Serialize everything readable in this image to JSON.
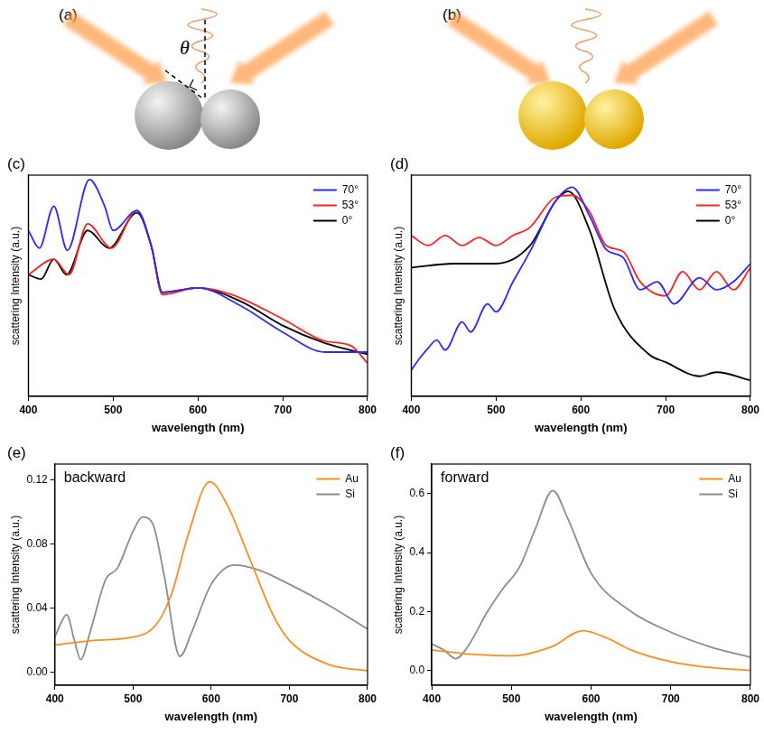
{
  "schematics": [
    {
      "panel": "(a)",
      "angle_label": "θ"
    },
    {
      "panel": "(b)"
    }
  ],
  "chart_data": [
    {
      "type": "line",
      "panel": "(c)",
      "x_label": "wavelength (nm)",
      "y_label": "scattering Intensity (a.u.)",
      "xlim": [
        400,
        800
      ],
      "xticks": [
        400,
        500,
        600,
        700,
        800
      ],
      "ylim": [
        0,
        1
      ],
      "tick_labels": "x",
      "grid": false,
      "legend": "upper right",
      "series": [
        {
          "name": "70°",
          "color": "#2a2aff",
          "x": [
            400,
            413,
            430,
            446,
            472,
            490,
            500,
            528,
            545,
            558,
            600,
            650,
            700,
            750,
            800
          ],
          "values": [
            0.75,
            0.67,
            0.86,
            0.66,
            0.98,
            0.86,
            0.75,
            0.84,
            0.68,
            0.47,
            0.49,
            0.41,
            0.29,
            0.2,
            0.2
          ]
        },
        {
          "name": "53°",
          "color": "#ff2020",
          "x": [
            400,
            430,
            448,
            470,
            498,
            528,
            545,
            558,
            600,
            640,
            700,
            750,
            780,
            800
          ],
          "values": [
            0.55,
            0.62,
            0.55,
            0.78,
            0.67,
            0.84,
            0.68,
            0.46,
            0.49,
            0.46,
            0.35,
            0.25,
            0.23,
            0.15
          ]
        },
        {
          "name": "0°",
          "color": "#000000",
          "x": [
            400,
            415,
            430,
            445,
            470,
            495,
            528,
            545,
            558,
            600,
            650,
            700,
            750,
            800
          ],
          "values": [
            0.55,
            0.53,
            0.62,
            0.55,
            0.75,
            0.67,
            0.83,
            0.68,
            0.47,
            0.49,
            0.43,
            0.32,
            0.24,
            0.19
          ]
        }
      ]
    },
    {
      "type": "line",
      "panel": "(d)",
      "x_label": "wavelength (nm)",
      "y_label": "scattering Intensity (a.u.)",
      "xlim": [
        400,
        800
      ],
      "xticks": [
        400,
        500,
        600,
        700,
        800
      ],
      "ylim": [
        0,
        1.1
      ],
      "tick_labels": "x",
      "grid": false,
      "legend": "upper right",
      "series": [
        {
          "name": "70°",
          "color": "#2a2aff",
          "x": [
            400,
            410,
            420,
            430,
            440,
            460,
            470,
            490,
            500,
            520,
            540,
            570,
            590,
            610,
            630,
            650,
            670,
            690,
            710,
            740,
            760,
            780,
            800
          ],
          "values": [
            0.13,
            0.19,
            0.24,
            0.28,
            0.23,
            0.37,
            0.32,
            0.46,
            0.42,
            0.57,
            0.72,
            0.97,
            1.04,
            0.9,
            0.73,
            0.69,
            0.53,
            0.57,
            0.46,
            0.59,
            0.53,
            0.57,
            0.66
          ]
        },
        {
          "name": "53°",
          "color": "#ff2020",
          "x": [
            400,
            420,
            440,
            460,
            480,
            500,
            520,
            540,
            570,
            590,
            610,
            630,
            650,
            670,
            700,
            720,
            740,
            760,
            780,
            800
          ],
          "values": [
            0.8,
            0.75,
            0.8,
            0.75,
            0.79,
            0.75,
            0.8,
            0.84,
            0.99,
            1.0,
            0.92,
            0.75,
            0.72,
            0.57,
            0.5,
            0.62,
            0.53,
            0.62,
            0.53,
            0.64
          ]
        },
        {
          "name": "0°",
          "color": "#000000",
          "x": [
            400,
            450,
            500,
            540,
            570,
            585,
            610,
            640,
            680,
            700,
            740,
            760,
            800
          ],
          "values": [
            0.64,
            0.66,
            0.66,
            0.75,
            0.97,
            1.02,
            0.83,
            0.43,
            0.21,
            0.17,
            0.1,
            0.12,
            0.08
          ]
        }
      ]
    },
    {
      "type": "line",
      "panel": "(e)",
      "annotation": "backward",
      "x_label": "wavelength (nm)",
      "y_label": "scattering Intensity (a.u.)",
      "xlim": [
        400,
        800
      ],
      "xticks": [
        400,
        500,
        600,
        700,
        800
      ],
      "ylim": [
        -0.008,
        0.13
      ],
      "yticks": [
        {
          "value": 0,
          "label": "0.00"
        },
        {
          "value": 0.04,
          "label": "0.04"
        },
        {
          "value": 0.08,
          "label": "0.08"
        },
        {
          "value": 0.12,
          "label": "0.12"
        }
      ],
      "grid": false,
      "legend": "upper right",
      "series": [
        {
          "name": "Au",
          "color": "#ff8c1a",
          "x": [
            400,
            450,
            500,
            530,
            550,
            570,
            598,
            620,
            650,
            680,
            700,
            750,
            800
          ],
          "values": [
            0.017,
            0.02,
            0.022,
            0.03,
            0.05,
            0.085,
            0.119,
            0.105,
            0.07,
            0.035,
            0.02,
            0.005,
            0.001
          ]
        },
        {
          "name": "Si",
          "color": "#8c8c8c",
          "x": [
            400,
            410,
            415,
            425,
            433,
            445,
            465,
            480,
            500,
            512,
            525,
            540,
            560,
            575,
            600,
            630,
            660,
            700,
            750,
            800
          ],
          "values": [
            0.022,
            0.033,
            0.036,
            0.02,
            0.008,
            0.025,
            0.058,
            0.065,
            0.088,
            0.097,
            0.093,
            0.06,
            0.01,
            0.025,
            0.055,
            0.067,
            0.064,
            0.055,
            0.042,
            0.027
          ]
        }
      ]
    },
    {
      "type": "line",
      "panel": "(f)",
      "annotation": "forward",
      "x_label": "wavelength (nm)",
      "y_label": "scattering Intensity (a.u.)",
      "xlim": [
        400,
        800
      ],
      "xticks": [
        400,
        500,
        600,
        700,
        800
      ],
      "ylim": [
        -0.05,
        0.7
      ],
      "yticks": [
        {
          "value": 0,
          "label": "0.0"
        },
        {
          "value": 0.2,
          "label": "0.2"
        },
        {
          "value": 0.4,
          "label": "0.4"
        },
        {
          "value": 0.6,
          "label": "0.6"
        }
      ],
      "grid": false,
      "legend": "upper right",
      "series": [
        {
          "name": "Au",
          "color": "#ff8c1a",
          "x": [
            400,
            450,
            500,
            550,
            590,
            620,
            650,
            700,
            750,
            800
          ],
          "values": [
            0.07,
            0.055,
            0.05,
            0.08,
            0.135,
            0.11,
            0.07,
            0.03,
            0.01,
            0.0
          ]
        },
        {
          "name": "Si",
          "color": "#8c8c8c",
          "x": [
            400,
            415,
            430,
            445,
            470,
            490,
            510,
            530,
            552,
            570,
            600,
            650,
            700,
            750,
            800
          ],
          "values": [
            0.09,
            0.07,
            0.04,
            0.08,
            0.2,
            0.28,
            0.35,
            0.48,
            0.61,
            0.52,
            0.33,
            0.2,
            0.13,
            0.08,
            0.045
          ]
        }
      ]
    }
  ]
}
